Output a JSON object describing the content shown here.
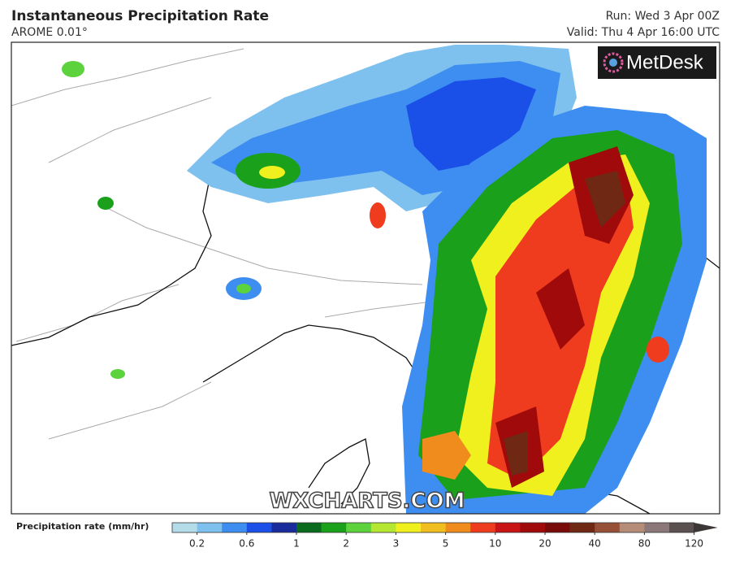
{
  "header": {
    "title": "Instantaneous Precipitation Rate",
    "subtitle": "AROME 0.01°",
    "run": "Run: Wed 3 Apr 00Z",
    "valid": "Valid: Thu 4 Apr 16:00 UTC"
  },
  "logo": "MetDesk",
  "watermark": "WXCHARTS.COM",
  "legend": {
    "title": "Precipitation rate (mm/hr)",
    "labels": [
      "0.2",
      "0.6",
      "1",
      "2",
      "3",
      "5",
      "10",
      "20",
      "40",
      "80",
      "120"
    ],
    "colors": [
      "#b4dce8",
      "#7ec0ee",
      "#3d8ef0",
      "#1a50e8",
      "#1a2c9c",
      "#0a6a1e",
      "#1aa01a",
      "#5cd23c",
      "#b4e632",
      "#f0f01e",
      "#f0be1e",
      "#f08c1e",
      "#f03c1e",
      "#c81414",
      "#a00a0a",
      "#780a0a",
      "#6e2814",
      "#965037",
      "#b48c78",
      "#8c7878",
      "#5a5050",
      "#3c3737"
    ]
  }
}
